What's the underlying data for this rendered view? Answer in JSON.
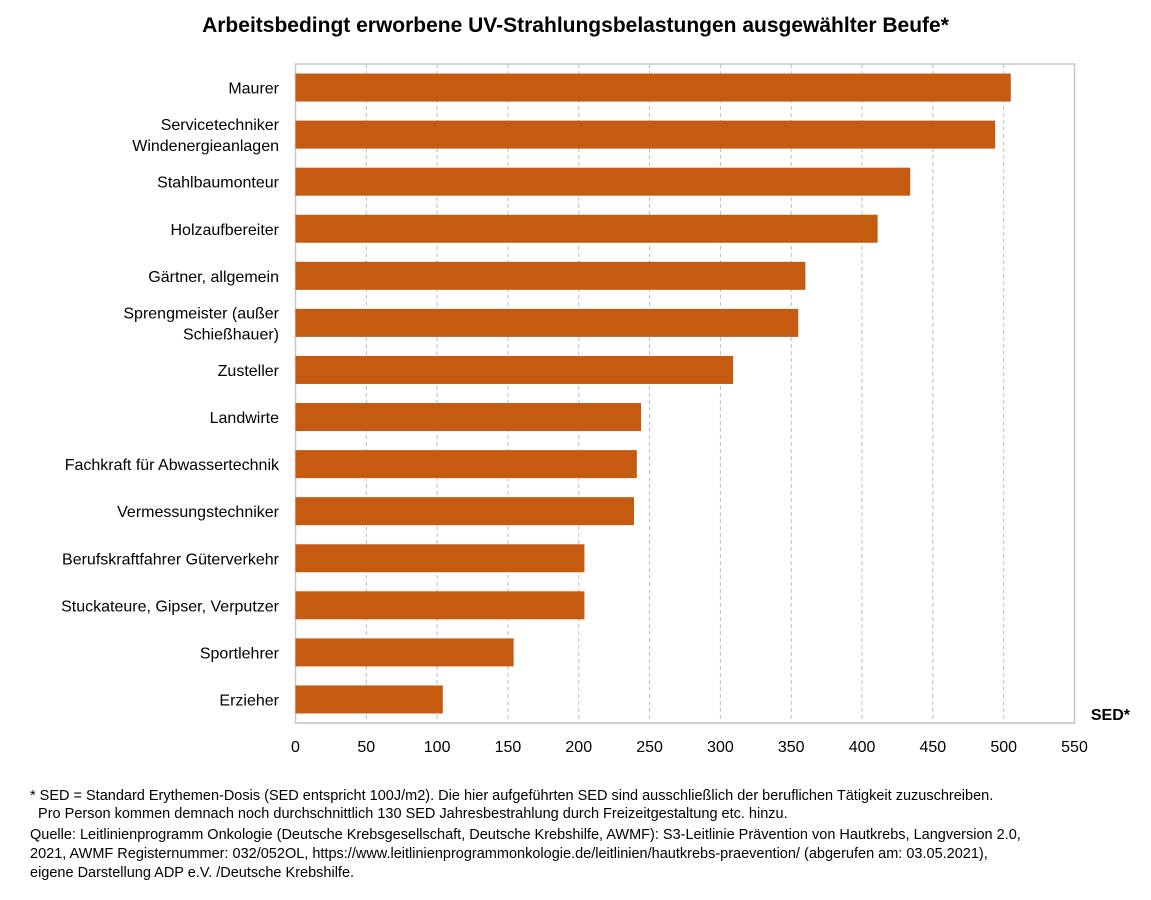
{
  "chart_data": {
    "type": "bar",
    "orientation": "horizontal",
    "title": "Arbeitsbedingt erworbene UV-Strahlungsbelastungen ausgewählter Beufe*",
    "xlabel": "SED*",
    "ylabel": "",
    "xlim": [
      0,
      550
    ],
    "xticks": [
      0,
      50,
      100,
      150,
      200,
      250,
      300,
      350,
      400,
      450,
      500,
      550
    ],
    "grid": "vertical dashed",
    "bar_color": "#c55a11",
    "categories": [
      [
        "Maurer"
      ],
      [
        "Servicetechniker",
        "Windenergieanlagen"
      ],
      [
        "Stahlbaumonteur"
      ],
      [
        "Holzaufbereiter"
      ],
      [
        "Gärtner, allgemein"
      ],
      [
        "Sprengmeister (außer",
        "Schießhauer)"
      ],
      [
        "Zusteller"
      ],
      [
        "Landwirte"
      ],
      [
        "Fachkraft für Abwassertechnik"
      ],
      [
        "Vermessungstechniker"
      ],
      [
        "Berufskraftfahrer Güterverkehr"
      ],
      [
        "Stuckateure, Gipser, Verputzer"
      ],
      [
        "Sportlehrer"
      ],
      [
        "Erzieher"
      ]
    ],
    "values": [
      505,
      494,
      434,
      411,
      360,
      355,
      309,
      244,
      241,
      239,
      204,
      204,
      154,
      104
    ]
  },
  "footnotes": {
    "line1": "* SED = Standard Erythemen-Dosis (SED entspricht 100J/m2). Die hier aufgeführten SED sind ausschließlich der beruflichen Tätigkeit zuzuschreiben.",
    "line2": "  Pro Person kommen demnach noch durchschnittlich 130 SED Jahresbestrahlung durch Freizeitgestaltung etc. hinzu.",
    "source1": "Quelle: Leitlinienprogramm Onkologie (Deutsche Krebsgesellschaft, Deutsche Krebshilfe, AWMF): S3-Leitlinie Prävention von Hautkrebs, Langversion 2.0,",
    "source2": "2021, AWMF Registernummer: 032/052OL, https://www.leitlinienprogrammonkologie.de/leitlinien/hautkrebs-praevention/ (abgerufen am: 03.05.2021),",
    "source3": "eigene Darstellung ADP e.V. /Deutsche Krebshilfe."
  }
}
